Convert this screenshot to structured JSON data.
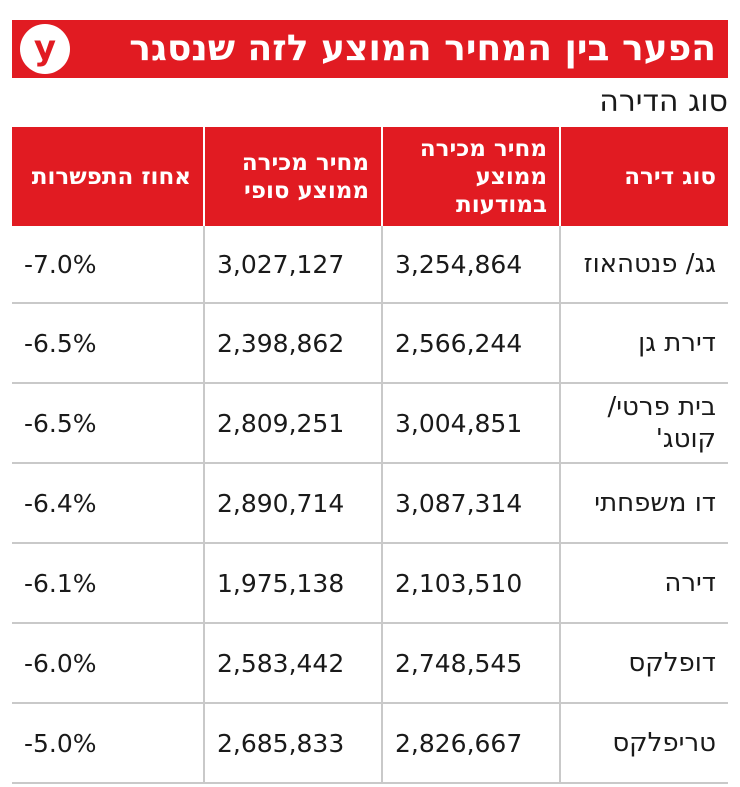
{
  "header": {
    "title": "הפער בין המחיר המוצע לזה שנסגר",
    "subtitle": "סוג הדירה",
    "logo_letter": "y"
  },
  "colors": {
    "accent": "#e11b22",
    "text": "#1a1a1a",
    "row_border": "#c9c9c9",
    "header_text": "#ffffff"
  },
  "chart_data": {
    "type": "table",
    "title": "הפער בין המחיר המוצע לזה שנסגר",
    "subtitle": "סוג הדירה",
    "columns": [
      "סוג דירה",
      "מחיר מכירה ממוצע במודעות",
      "מחיר מכירה ממוצע סופי",
      "אחוז התפשרות"
    ],
    "rows": [
      [
        "גג/ פנטהאוז",
        "3,254,864",
        "3,027,127",
        "-7.0%"
      ],
      [
        "דירת גן",
        "2,566,244",
        "2,398,862",
        "-6.5%"
      ],
      [
        "בית פרטי/ קוטג'",
        "3,004,851",
        "2,809,251",
        "-6.5%"
      ],
      [
        "דו משפחתי",
        "3,087,314",
        "2,890,714",
        "-6.4%"
      ],
      [
        "דירה",
        "2,103,510",
        "1,975,138",
        "-6.1%"
      ],
      [
        "דופלקס",
        "2,748,545",
        "2,583,442",
        "-6.0%"
      ],
      [
        "טריפלקס",
        "2,826,667",
        "2,685,833",
        "-5.0%"
      ]
    ]
  }
}
